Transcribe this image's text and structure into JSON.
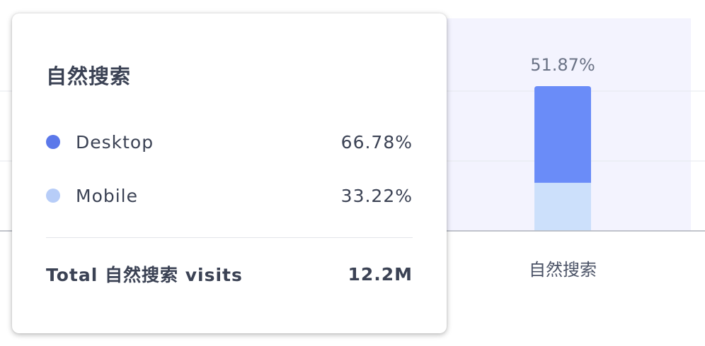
{
  "chart_data": {
    "type": "bar",
    "stacked": true,
    "categories": [
      "自然搜索"
    ],
    "bar_label": "51.87%",
    "series": [
      {
        "name": "Desktop",
        "values": [
          66.78
        ],
        "color": "#6a8cf8"
      },
      {
        "name": "Mobile",
        "values": [
          33.22
        ],
        "color": "#cce0fb"
      }
    ],
    "highlight_color": "#f3f3fe",
    "grid": true
  },
  "tooltip": {
    "title": "自然搜索",
    "items": [
      {
        "label": "Desktop",
        "value": "66.78%",
        "dot_color": "#5b78ea"
      },
      {
        "label": "Mobile",
        "value": "33.22%",
        "dot_color": "#b7cdf8"
      }
    ],
    "total_label": "Total 自然搜索 visits",
    "total_value": "12.2M"
  }
}
